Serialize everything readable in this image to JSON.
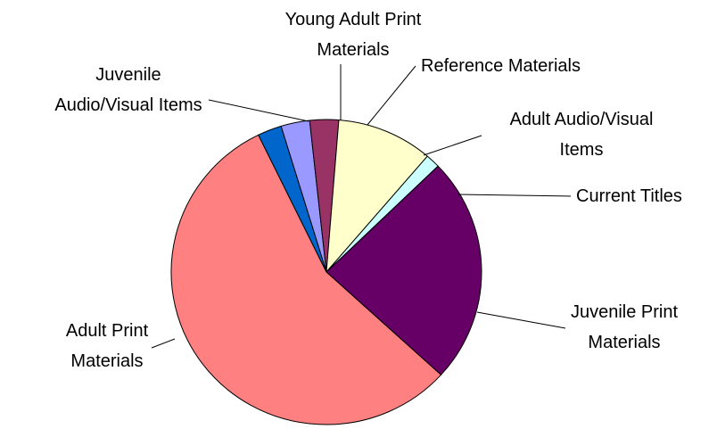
{
  "chart_data": {
    "type": "pie",
    "title": "",
    "start_angle_deg": -17,
    "direction": "clockwise",
    "legend": "none",
    "slices": [
      {
        "label": "Young Adult Print Materials",
        "value": 3.0,
        "color": "#9999FF"
      },
      {
        "label": "Reference Materials",
        "value": 3.0,
        "color": "#993366"
      },
      {
        "label": "Adult Audio/Visual Items",
        "value": 10.0,
        "color": "#FFFFCC"
      },
      {
        "label": "Current Titles",
        "value": 1.5,
        "color": "#CCFFFF"
      },
      {
        "label": "Juvenile Print Materials",
        "value": 24.0,
        "color": "#660066"
      },
      {
        "label": "Adult Print Materials",
        "value": 56.0,
        "color": "#FF8080"
      },
      {
        "label": "Juvenile Audio/Visual Items",
        "value": 2.5,
        "color": "#0066CC"
      }
    ]
  }
}
